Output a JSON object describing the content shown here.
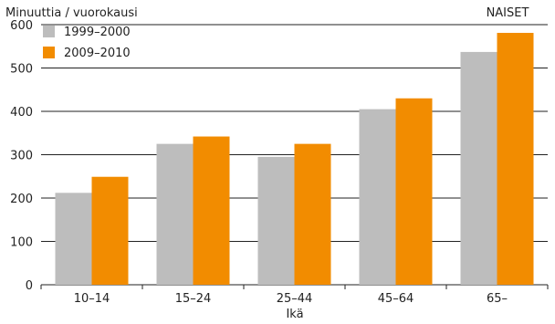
{
  "chart_data": {
    "type": "bar",
    "title": "",
    "ylabel": "Minuuttia / vuorokausi",
    "xlabel": "Ikä",
    "corner_label": "NAISET",
    "categories": [
      "10–14",
      "15–24",
      "25–44",
      "45–64",
      "65–"
    ],
    "series": [
      {
        "name": "1999–2000",
        "color": "#bdbdbd",
        "values": [
          212,
          325,
          295,
          405,
          537
        ]
      },
      {
        "name": "2009–2010",
        "color": "#f28c00",
        "values": [
          249,
          342,
          325,
          430,
          581
        ]
      }
    ],
    "ylim": [
      0,
      600
    ],
    "yticks": [
      0,
      100,
      200,
      300,
      400,
      500,
      600
    ],
    "grid": true,
    "legend_position": "top-left"
  }
}
